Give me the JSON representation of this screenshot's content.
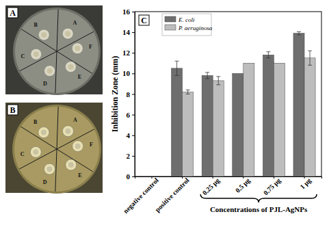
{
  "chart_data": {
    "type": "bar",
    "x_label": "Concentrations of  PJL-AgNPs",
    "y_label": "Inhibition Zone (mm)",
    "annotations": [
      "C"
    ],
    "categories": [
      "negative control",
      "positive control",
      "0.25 µg",
      "0.5 µg",
      "0.75 µg",
      "1 µg"
    ],
    "series": [
      {
        "name": "E. coli",
        "color": "#6e6e6e",
        "values": [
          0,
          10.5,
          9.8,
          10.0,
          11.8,
          13.9
        ],
        "errors": [
          0,
          0.7,
          0.3,
          0,
          0.3,
          0.15
        ]
      },
      {
        "name": "P. aeruginosa",
        "color": "#bdbdbd",
        "values": [
          0,
          8.2,
          9.3,
          11.0,
          11.0,
          11.5
        ],
        "errors": [
          0,
          0.2,
          0.4,
          0,
          0,
          0.7
        ]
      }
    ],
    "ylim": [
      0,
      16
    ],
    "yticks": [
      0,
      2,
      4,
      6,
      8,
      10,
      12,
      14,
      16
    ],
    "grid": false,
    "legend": "upper left"
  },
  "photos": [
    {
      "label": "A",
      "sectors": [
        "A",
        "B",
        "C",
        "D",
        "E",
        "F"
      ]
    },
    {
      "label": "B",
      "sectors": [
        "A",
        "B",
        "C",
        "D",
        "E",
        "F"
      ]
    }
  ]
}
